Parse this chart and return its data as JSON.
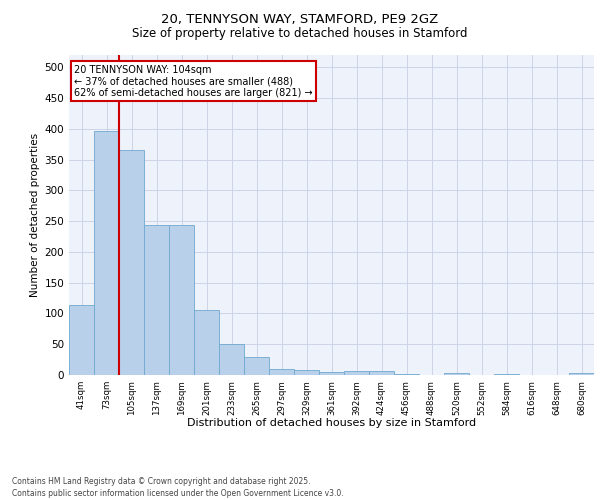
{
  "title_line1": "20, TENNYSON WAY, STAMFORD, PE9 2GZ",
  "title_line2": "Size of property relative to detached houses in Stamford",
  "xlabel": "Distribution of detached houses by size in Stamford",
  "ylabel": "Number of detached properties",
  "bar_color": "#b8d0ea",
  "bar_edge_color": "#6fa8d0",
  "background_color": "#eef2fa",
  "grid_color": "#ccd4e8",
  "ref_line_color": "#cc0000",
  "ref_line_x": 1.5,
  "annotation_box_text": "20 TENNYSON WAY: 104sqm\n← 37% of detached houses are smaller (488)\n62% of semi-detached houses are larger (821) →",
  "annotation_box_color": "#cc0000",
  "footer_line1": "Contains HM Land Registry data © Crown copyright and database right 2025.",
  "footer_line2": "Contains public sector information licensed under the Open Government Licence v3.0.",
  "categories": [
    "41sqm",
    "73sqm",
    "105sqm",
    "137sqm",
    "169sqm",
    "201sqm",
    "233sqm",
    "265sqm",
    "297sqm",
    "329sqm",
    "361sqm",
    "392sqm",
    "424sqm",
    "456sqm",
    "488sqm",
    "520sqm",
    "552sqm",
    "584sqm",
    "616sqm",
    "648sqm",
    "680sqm"
  ],
  "values": [
    113,
    397,
    365,
    243,
    243,
    106,
    50,
    30,
    10,
    8,
    5,
    6,
    6,
    1,
    0,
    3,
    0,
    2,
    0,
    0,
    4
  ],
  "ylim": [
    0,
    520
  ],
  "yticks": [
    0,
    50,
    100,
    150,
    200,
    250,
    300,
    350,
    400,
    450,
    500
  ]
}
